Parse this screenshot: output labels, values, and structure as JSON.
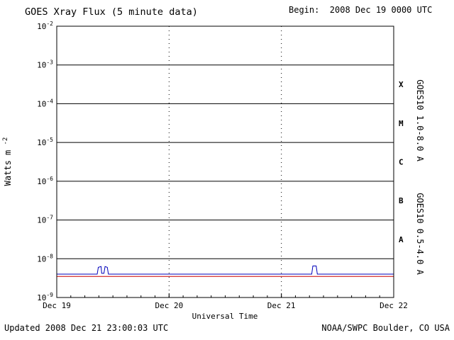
{
  "header": {
    "title": "GOES Xray Flux (5 minute data)",
    "begin_label": "Begin:  2008 Dec 19 0000 UTC"
  },
  "footer": {
    "updated": "Updated 2008 Dec 21 23:00:03 UTC",
    "source": "NOAA/SWPC Boulder, CO USA"
  },
  "chart_data": {
    "type": "line",
    "title": "GOES Xray Flux (5 minute data)",
    "begin_label": "Begin:  2008 Dec 19 0000 UTC",
    "xlabel": "Universal Time",
    "ylabel_base": "Watts m",
    "ylabel_exponent": "-2",
    "x_range_days": [
      0,
      3
    ],
    "y_log_range": [
      -9,
      -2
    ],
    "y_tick_exponents": [
      -2,
      -3,
      -4,
      -5,
      -6,
      -7,
      -8,
      -9
    ],
    "x_ticks": [
      {
        "day": 0,
        "label": "Dec 19"
      },
      {
        "day": 1,
        "label": "Dec 20"
      },
      {
        "day": 2,
        "label": "Dec 21"
      },
      {
        "day": 3,
        "label": "Dec 22"
      }
    ],
    "vertical_gridline_days": [
      1,
      2
    ],
    "flux_classes": [
      {
        "label": "X",
        "log_center": -3.5
      },
      {
        "label": "M",
        "log_center": -4.5
      },
      {
        "label": "C",
        "log_center": -5.5
      },
      {
        "label": "B",
        "log_center": -6.5
      },
      {
        "label": "A",
        "log_center": -7.5
      }
    ],
    "series": [
      {
        "name": "GOES10 1.0-8.0 A",
        "color": "#cc0000",
        "points": [
          [
            0,
            3.5e-09
          ],
          [
            3,
            3.5e-09
          ]
        ]
      },
      {
        "name": "GOES10 0.5-4.0 A",
        "color": "#0000bb",
        "points": [
          [
            0,
            4e-09
          ],
          [
            0.36,
            4e-09
          ],
          [
            0.37,
            6e-09
          ],
          [
            0.395,
            6.3e-09
          ],
          [
            0.4,
            4.2e-09
          ],
          [
            0.42,
            4.2e-09
          ],
          [
            0.43,
            6.3e-09
          ],
          [
            0.45,
            6e-09
          ],
          [
            0.46,
            4e-09
          ],
          [
            2.27,
            4e-09
          ],
          [
            2.28,
            6.5e-09
          ],
          [
            2.31,
            6.5e-09
          ],
          [
            2.32,
            4e-09
          ],
          [
            3,
            4e-09
          ]
        ]
      }
    ],
    "legend_position": "right-rotated",
    "grid": {
      "horizontal": "solid-per-decade",
      "vertical": "dotted-per-day"
    }
  }
}
